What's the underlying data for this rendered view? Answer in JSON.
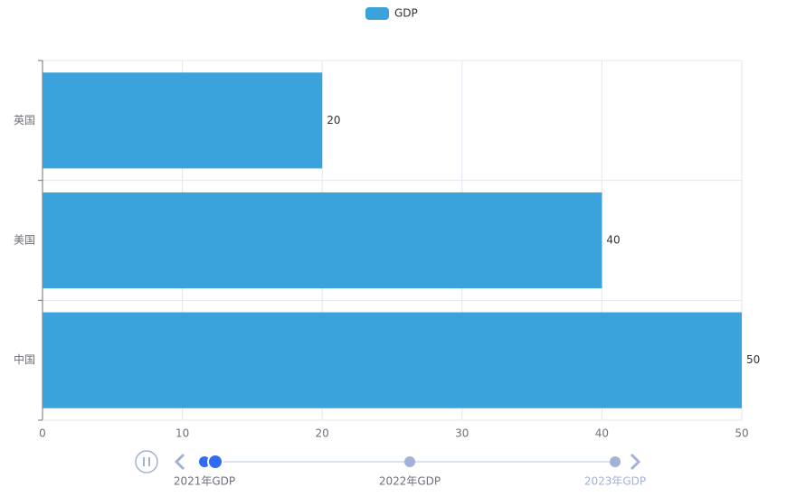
{
  "chart_data": {
    "type": "bar",
    "orientation": "horizontal",
    "categories": [
      "中国",
      "美国",
      "英国"
    ],
    "series": [
      {
        "name": "GDP",
        "color": "#3aa3db",
        "values": [
          50,
          40,
          20
        ]
      }
    ],
    "xlim": [
      0,
      50
    ],
    "xticks": [
      0,
      10,
      20,
      30,
      40,
      50
    ],
    "grid": true,
    "legend": "top",
    "timeline": [
      "2021年GDP",
      "2022年GDP",
      "2023年GDP"
    ]
  }
}
